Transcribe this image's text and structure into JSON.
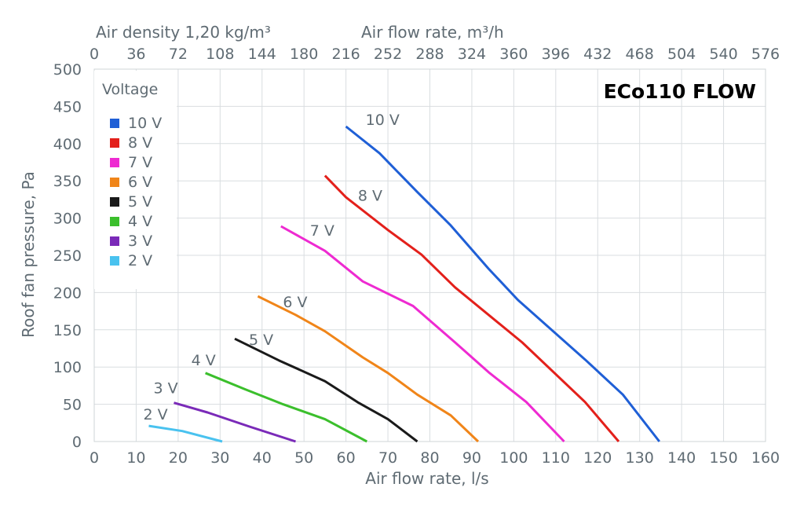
{
  "chart_data": {
    "type": "line",
    "brand_title": "ECo110 FLOW",
    "legend_title": "Voltage",
    "xlabel": "Air flow rate, l/s",
    "ylabel": "Roof fan pressure, Pa",
    "top_axis_label_left": "Air density 1,20 kg/m³",
    "top_axis_label_right": "Air flow rate, m³/h",
    "xlim": [
      0,
      160
    ],
    "ylim": [
      0,
      500
    ],
    "x_ticks": [
      "0",
      "10",
      "20",
      "30",
      "40",
      "50",
      "60",
      "70",
      "80",
      "90",
      "100",
      "110",
      "120",
      "130",
      "140",
      "150",
      "160"
    ],
    "y_ticks": [
      "0",
      "50",
      "100",
      "150",
      "200",
      "250",
      "300",
      "350",
      "400",
      "450",
      "500"
    ],
    "top_ticks": [
      "0",
      "36",
      "72",
      "108",
      "144",
      "180",
      "216",
      "252",
      "288",
      "324",
      "360",
      "396",
      "432",
      "468",
      "504",
      "540",
      "576"
    ],
    "grid": true,
    "legend_position": "top-left",
    "series": [
      {
        "name": "10 V",
        "color": "#1f5fd6",
        "x": [
          60,
          68,
          77,
          85,
          94,
          101,
          117,
          126,
          134.7
        ],
        "y": [
          423,
          387,
          335,
          290,
          232,
          190,
          110,
          63,
          0
        ]
      },
      {
        "name": "8 V",
        "color": "#e3201b",
        "x": [
          55,
          60,
          70,
          78,
          86,
          94,
          102,
          117,
          125
        ],
        "y": [
          357,
          328,
          284,
          251,
          207,
          170,
          133,
          53,
          0
        ]
      },
      {
        "name": "7 V",
        "color": "#ee2ad1",
        "x": [
          44.5,
          55,
          64,
          76,
          86,
          94,
          103,
          112
        ],
        "y": [
          289,
          256,
          215,
          182,
          133,
          93,
          53,
          0
        ]
      },
      {
        "name": "6 V",
        "color": "#f08519",
        "x": [
          39,
          48,
          55,
          64,
          70,
          77,
          85,
          91.5
        ],
        "y": [
          195,
          170,
          148,
          113,
          92,
          63,
          35,
          0
        ]
      },
      {
        "name": "5 V",
        "color": "#1a1a1a",
        "x": [
          33.5,
          44,
          55,
          63,
          70,
          77
        ],
        "y": [
          138,
          109,
          81,
          52,
          30,
          0
        ]
      },
      {
        "name": "4 V",
        "color": "#3bbf2c",
        "x": [
          26.5,
          36,
          45,
          55,
          65
        ],
        "y": [
          92,
          70,
          50,
          30,
          0
        ]
      },
      {
        "name": "3 V",
        "color": "#7a2ab8",
        "x": [
          19,
          27,
          37,
          48
        ],
        "y": [
          52,
          39,
          20,
          0
        ]
      },
      {
        "name": "2 V",
        "color": "#49c2ef",
        "x": [
          13,
          21,
          30.5
        ],
        "y": [
          21,
          14,
          0
        ]
      }
    ]
  }
}
